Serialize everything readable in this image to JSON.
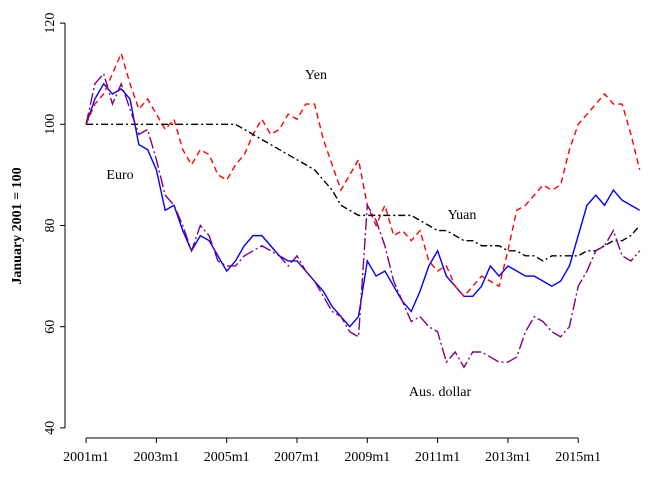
{
  "chart_data": {
    "type": "line",
    "y_label": "January 2001 = 100",
    "x": [
      2001,
      2001.25,
      2001.5,
      2001.75,
      2002,
      2002.25,
      2002.5,
      2002.75,
      2003,
      2003.25,
      2003.5,
      2003.75,
      2004,
      2004.25,
      2004.5,
      2004.75,
      2005,
      2005.25,
      2005.5,
      2005.75,
      2006,
      2006.25,
      2006.5,
      2006.75,
      2007,
      2007.25,
      2007.5,
      2007.75,
      2008,
      2008.25,
      2008.5,
      2008.75,
      2009,
      2009.25,
      2009.5,
      2009.75,
      2010,
      2010.25,
      2010.5,
      2010.75,
      2011,
      2011.25,
      2011.5,
      2011.75,
      2012,
      2012.25,
      2012.5,
      2012.75,
      2013,
      2013.25,
      2013.5,
      2013.75,
      2014,
      2014.25,
      2014.5,
      2014.75,
      2015,
      2015.25,
      2015.5,
      2015.75,
      2016,
      2016.25,
      2016.5,
      2016.75
    ],
    "series": [
      {
        "name": "Euro",
        "color": "#0000ff",
        "style": "solid",
        "values": [
          100,
          105,
          108,
          106,
          107,
          105,
          96,
          95,
          91,
          83,
          84,
          79,
          75,
          78,
          77,
          74,
          71,
          73,
          76,
          78,
          78,
          76,
          74,
          73,
          73,
          71,
          69,
          67,
          64,
          62,
          60,
          62,
          73,
          70,
          71,
          68,
          65,
          63,
          67,
          72,
          75,
          70,
          68,
          66,
          66,
          68,
          72,
          70,
          72,
          71,
          70,
          70,
          69,
          68,
          69,
          72,
          78,
          84,
          86,
          84,
          87,
          85,
          84,
          83
        ]
      },
      {
        "name": "Yen",
        "color": "#ff0000",
        "style": "dash",
        "values": [
          100,
          104,
          106,
          110,
          114,
          108,
          103,
          105,
          102,
          99,
          101,
          95,
          92,
          95,
          94,
          90,
          89,
          92,
          94,
          98,
          101,
          98,
          99,
          102,
          101,
          104,
          104,
          97,
          92,
          87,
          90,
          93,
          84,
          80,
          84,
          78,
          79,
          77,
          79,
          73,
          71,
          72,
          68,
          66,
          68,
          70,
          69,
          68,
          75,
          83,
          84,
          86,
          88,
          87,
          88,
          95,
          100,
          102,
          104,
          106,
          104,
          104,
          98,
          91
        ]
      },
      {
        "name": "Yuan",
        "color": "#000000",
        "style": "dashdot",
        "values": [
          100,
          100,
          100,
          100,
          100,
          100,
          100,
          100,
          100,
          100,
          100,
          100,
          100,
          100,
          100,
          100,
          100,
          100,
          99,
          98,
          97,
          96,
          95,
          94,
          93,
          92,
          91,
          89,
          87,
          84,
          83,
          82,
          82,
          82,
          82,
          82,
          82,
          82,
          81,
          80,
          79,
          79,
          78,
          77,
          77,
          76,
          76,
          76,
          75,
          75,
          74,
          74,
          73,
          74,
          74,
          74,
          74,
          75,
          75,
          76,
          77,
          77,
          78,
          80
        ]
      },
      {
        "name": "Aus. dollar",
        "color": "#800080",
        "style": "longdashdot",
        "values": [
          100,
          108,
          110,
          104,
          108,
          103,
          98,
          99,
          93,
          86,
          84,
          80,
          75,
          80,
          78,
          73,
          72,
          72,
          74,
          75,
          76,
          75,
          74,
          72,
          74,
          71,
          69,
          66,
          63,
          62,
          59,
          58,
          84,
          81,
          76,
          69,
          65,
          61,
          62,
          60,
          59,
          53,
          55,
          52,
          55,
          55,
          54,
          53,
          53,
          54,
          59,
          62,
          61,
          59,
          58,
          60,
          68,
          71,
          75,
          76,
          79,
          74,
          73,
          75
        ]
      }
    ],
    "xlim": [
      2000.4,
      2016.9
    ],
    "ylim": [
      38,
      122
    ],
    "xticks": [
      {
        "value": 2001,
        "label": "2001m1"
      },
      {
        "value": 2003,
        "label": "2003m1"
      },
      {
        "value": 2005,
        "label": "2005m1"
      },
      {
        "value": 2007,
        "label": "2007m1"
      },
      {
        "value": 2009,
        "label": "2009m1"
      },
      {
        "value": 2011,
        "label": "2011m1"
      },
      {
        "value": 2013,
        "label": "2013m1"
      },
      {
        "value": 2015,
        "label": "2015m1"
      }
    ],
    "yticks": [
      40,
      60,
      80,
      100,
      120
    ],
    "grid": false
  }
}
